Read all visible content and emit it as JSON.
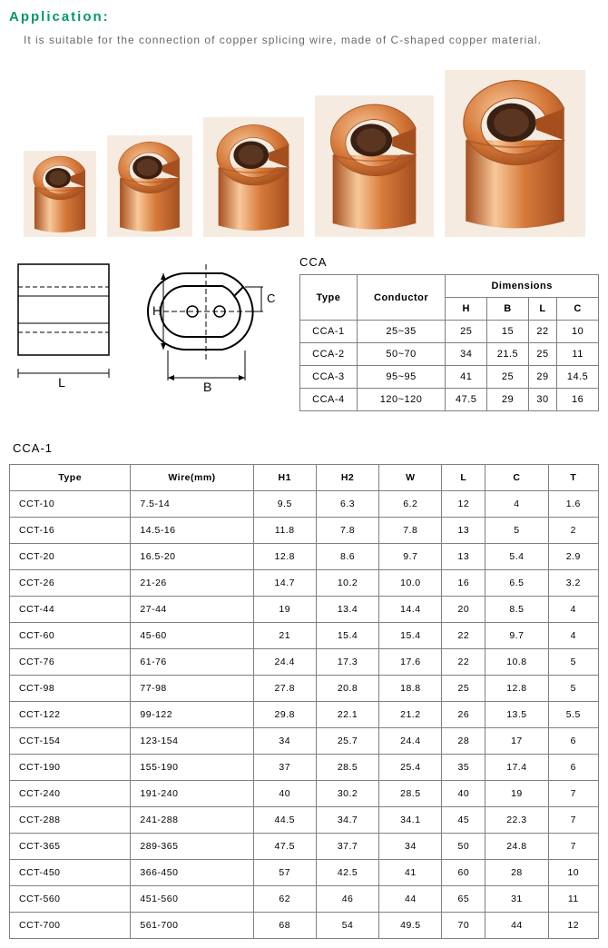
{
  "application": {
    "title": "Application:",
    "description": "It is suitable for the connection of copper splicing wire, made of C-shaped copper material.",
    "title_color": "#009966",
    "desc_color": "#696969"
  },
  "product_image": {
    "count": 5,
    "base_width": 80,
    "base_height": 95,
    "scale_step": 1.18,
    "copper_light": "#e8955a",
    "copper_mid": "#d67a3a",
    "copper_dark": "#a54f1f",
    "copper_highlight": "#f8c89a",
    "background": "#f5ebe0"
  },
  "diagrams": {
    "rect": {
      "label_L": "L"
    },
    "cshape": {
      "label_H": "H",
      "label_B": "B",
      "label_C": "C"
    },
    "stroke": "#000000"
  },
  "cca": {
    "title": "CCA",
    "columns": [
      "Type",
      "Conductor",
      "H",
      "B",
      "L",
      "C"
    ],
    "dim_header": "Dimensions",
    "rows": [
      [
        "CCA-1",
        "25~35",
        "25",
        "15",
        "22",
        "10"
      ],
      [
        "CCA-2",
        "50~70",
        "34",
        "21.5",
        "25",
        "11"
      ],
      [
        "CCA-3",
        "95~95",
        "41",
        "25",
        "29",
        "14.5"
      ],
      [
        "CCA-4",
        "120~120",
        "47.5",
        "29",
        "30",
        "16"
      ]
    ]
  },
  "cca1": {
    "title": "CCA-1",
    "columns": [
      "Type",
      "Wire(mm)",
      "H1",
      "H2",
      "W",
      "L",
      "C",
      "T"
    ],
    "rows": [
      [
        "CCT-10",
        "7.5-14",
        "9.5",
        "6.3",
        "6.2",
        "12",
        "4",
        "1.6"
      ],
      [
        "CCT-16",
        "14.5-16",
        "11.8",
        "7.8",
        "7.8",
        "13",
        "5",
        "2"
      ],
      [
        "CCT-20",
        "16.5-20",
        "12.8",
        "8.6",
        "9.7",
        "13",
        "5.4",
        "2.9"
      ],
      [
        "CCT-26",
        "21-26",
        "14.7",
        "10.2",
        "10.0",
        "16",
        "6.5",
        "3.2"
      ],
      [
        "CCT-44",
        "27-44",
        "19",
        "13.4",
        "14.4",
        "20",
        "8.5",
        "4"
      ],
      [
        "CCT-60",
        "45-60",
        "21",
        "15.4",
        "15.4",
        "22",
        "9.7",
        "4"
      ],
      [
        "CCT-76",
        "61-76",
        "24.4",
        "17.3",
        "17.6",
        "22",
        "10.8",
        "5"
      ],
      [
        "CCT-98",
        "77-98",
        "27.8",
        "20.8",
        "18.8",
        "25",
        "12.8",
        "5"
      ],
      [
        "CCT-122",
        "99-122",
        "29.8",
        "22.1",
        "21.2",
        "26",
        "13.5",
        "5.5"
      ],
      [
        "CCT-154",
        "123-154",
        "34",
        "25.7",
        "24.4",
        "28",
        "17",
        "6"
      ],
      [
        "CCT-190",
        "155-190",
        "37",
        "28.5",
        "25.4",
        "35",
        "17.4",
        "6"
      ],
      [
        "CCT-240",
        "191-240",
        "40",
        "30.2",
        "28.5",
        "40",
        "19",
        "7"
      ],
      [
        "CCT-288",
        "241-288",
        "44.5",
        "34.7",
        "34.1",
        "45",
        "22.3",
        "7"
      ],
      [
        "CCT-365",
        "289-365",
        "47.5",
        "37.7",
        "34",
        "50",
        "24.8",
        "7"
      ],
      [
        "CCT-450",
        "366-450",
        "57",
        "42.5",
        "41",
        "60",
        "28",
        "10"
      ],
      [
        "CCT-560",
        "451-560",
        "62",
        "46",
        "44",
        "65",
        "31",
        "11"
      ],
      [
        "CCT-700",
        "561-700",
        "68",
        "54",
        "49.5",
        "70",
        "44",
        "12"
      ]
    ]
  },
  "table_style": {
    "border_color": "#808080",
    "font_size": 11
  }
}
